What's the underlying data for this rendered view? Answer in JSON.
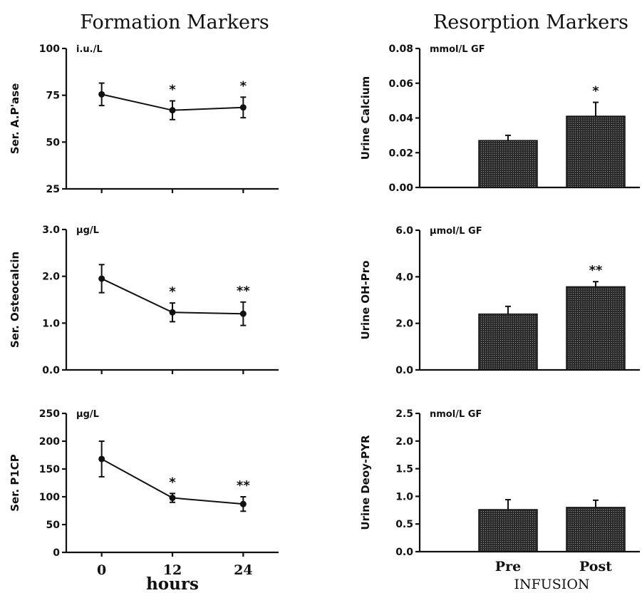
{
  "column_titles": {
    "left": "Formation Markers",
    "right": "Resorption Markers"
  },
  "chart_data": [
    {
      "type": "line",
      "ylabel": "Ser. A.P'ase",
      "unit": "i.u./L",
      "ylim": [
        25,
        100
      ],
      "yticks": [
        25,
        50,
        75,
        100
      ],
      "ytick_labels": [
        "25",
        "50",
        "75",
        "100"
      ],
      "x": [
        0,
        12,
        24
      ],
      "xlim": [
        -6,
        30
      ],
      "values": [
        75.5,
        67,
        68.5
      ],
      "errors": [
        6,
        5,
        5.5
      ],
      "annotations": [
        "",
        "*",
        "*"
      ]
    },
    {
      "type": "line",
      "ylabel": "Ser. Osteocalcin",
      "unit": "µg/L",
      "ylim": [
        0,
        3
      ],
      "yticks": [
        0,
        1,
        2,
        3
      ],
      "ytick_labels": [
        "0.0",
        "1.0",
        "2.0",
        "3.0"
      ],
      "x": [
        0,
        12,
        24
      ],
      "xlim": [
        -6,
        30
      ],
      "values": [
        1.95,
        1.23,
        1.2
      ],
      "errors": [
        0.3,
        0.2,
        0.25
      ],
      "annotations": [
        "",
        "*",
        "**"
      ]
    },
    {
      "type": "line",
      "ylabel": "Ser. P1CP",
      "unit": "µg/L",
      "ylim": [
        0,
        250
      ],
      "yticks": [
        0,
        50,
        100,
        150,
        200,
        250
      ],
      "ytick_labels": [
        "0",
        "50",
        "100",
        "150",
        "200",
        "250"
      ],
      "x": [
        0,
        12,
        24
      ],
      "xlim": [
        -6,
        30
      ],
      "xtick_labels": [
        "0",
        "12",
        "24"
      ],
      "xlabel": "hours",
      "values": [
        168,
        98,
        87
      ],
      "errors": [
        32,
        8,
        13
      ],
      "annotations": [
        "",
        "*",
        "**"
      ]
    },
    {
      "type": "bar",
      "ylabel": "Urine Calcium",
      "unit": "mmol/L GF",
      "ylim": [
        0,
        0.08
      ],
      "yticks": [
        0,
        0.02,
        0.04,
        0.06,
        0.08
      ],
      "ytick_labels": [
        "0.00",
        "0.02",
        "0.04",
        "0.06",
        "0.08"
      ],
      "categories": [
        "Pre",
        "Post"
      ],
      "values": [
        0.027,
        0.041
      ],
      "errors": [
        0.003,
        0.008
      ],
      "annotations": [
        "",
        "*"
      ]
    },
    {
      "type": "bar",
      "ylabel": "Urine OH-Pro",
      "unit": "µmol/L GF",
      "ylim": [
        0,
        6
      ],
      "yticks": [
        0,
        2,
        4,
        6
      ],
      "ytick_labels": [
        "0.0",
        "2.0",
        "4.0",
        "6.0"
      ],
      "categories": [
        "Pre",
        "Post"
      ],
      "values": [
        2.4,
        3.57
      ],
      "errors": [
        0.33,
        0.22
      ],
      "annotations": [
        "",
        "**"
      ]
    },
    {
      "type": "bar",
      "ylabel": "Urine Deoy-PYR",
      "unit": "nmol/L GF",
      "ylim": [
        0,
        2.5
      ],
      "yticks": [
        0,
        0.5,
        1,
        1.5,
        2,
        2.5
      ],
      "ytick_labels": [
        "0.0",
        "0.5",
        "1.0",
        "1.5",
        "2.0",
        "2.5"
      ],
      "categories": [
        "Pre",
        "Post"
      ],
      "xtick_labels": [
        "Pre",
        "Post"
      ],
      "xlabel": "INFUSION",
      "values": [
        0.76,
        0.8
      ],
      "errors": [
        0.18,
        0.13
      ],
      "annotations": [
        "",
        ""
      ]
    }
  ]
}
